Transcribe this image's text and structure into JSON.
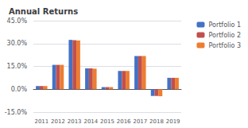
{
  "chart_data": {
    "type": "bar",
    "title": "Annual Returns",
    "categories": [
      "2011",
      "2012",
      "2013",
      "2014",
      "2015",
      "2016",
      "2017",
      "2018",
      "2019"
    ],
    "series": [
      {
        "name": "Portfolio 1",
        "color": "#4472C4",
        "values": [
          2.1,
          16.0,
          32.4,
          13.7,
          1.4,
          12.0,
          21.8,
          -4.4,
          7.5
        ]
      },
      {
        "name": "Portfolio 2",
        "color": "#C0504D",
        "values": [
          2.1,
          16.0,
          32.2,
          13.7,
          1.4,
          12.0,
          21.8,
          -4.4,
          7.5
        ]
      },
      {
        "name": "Portfolio 3",
        "color": "#ED7D31",
        "values": [
          2.1,
          16.0,
          32.0,
          13.5,
          1.4,
          12.0,
          21.8,
          -4.6,
          7.5
        ]
      }
    ],
    "ylim": [
      -15.0,
      45.0
    ],
    "yticks": [
      {
        "value": -15.0,
        "label": "-15.0%"
      },
      {
        "value": 0.0,
        "label": "0.0%"
      },
      {
        "value": 15.0,
        "label": "15.0%"
      },
      {
        "value": 30.0,
        "label": "30.0%"
      },
      {
        "value": 45.0,
        "label": "45.0%"
      }
    ],
    "grid": true,
    "legend": "right"
  }
}
